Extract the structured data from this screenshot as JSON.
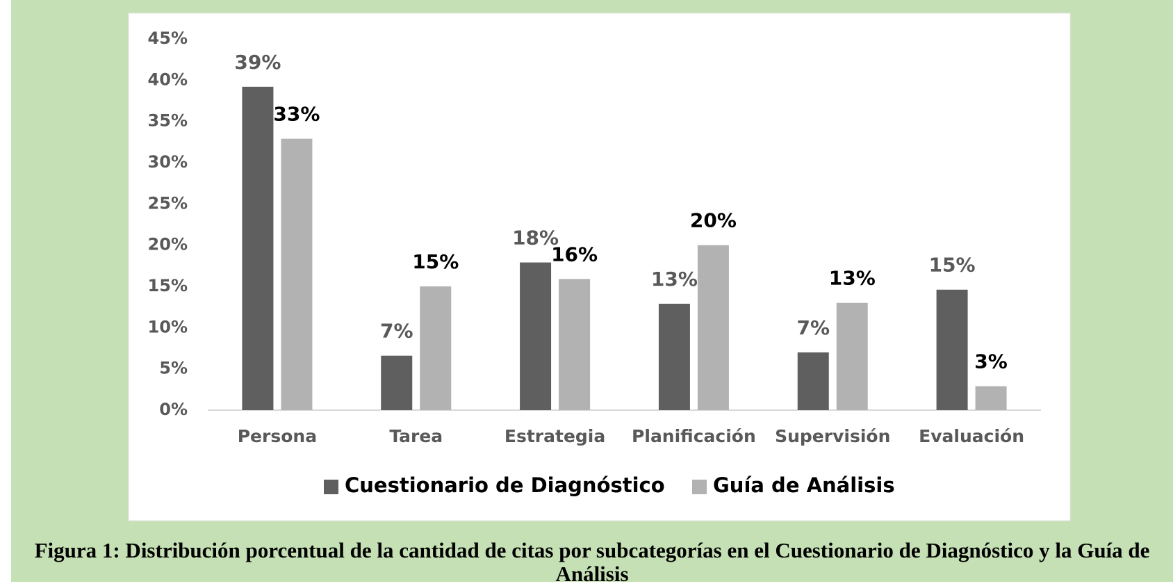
{
  "chart_data": {
    "type": "bar",
    "categories": [
      "Persona",
      "Tarea",
      "Estrategia",
      "Planificación",
      "Supervisión",
      "Evaluación"
    ],
    "series": [
      {
        "name": "Cuestionario de Diagnóstico",
        "color": "#5f5f5f",
        "values": [
          39.2,
          6.6,
          17.9,
          12.9,
          7.0,
          14.6
        ],
        "value_labels": [
          "39%",
          "7%",
          "18%",
          "13%",
          "7%",
          "15%"
        ]
      },
      {
        "name": "Guía de Análisis",
        "color": "#b2b2b2",
        "values": [
          32.9,
          15.0,
          15.9,
          20.0,
          13.0,
          2.9
        ],
        "value_labels": [
          "33%",
          "15%",
          "16%",
          "20%",
          "13%",
          "3%"
        ]
      }
    ],
    "ylim": [
      0,
      45
    ],
    "yticks": [
      {
        "value": 0,
        "label": "0%"
      },
      {
        "value": 5,
        "label": "5%"
      },
      {
        "value": 10,
        "label": "10%"
      },
      {
        "value": 15,
        "label": "15%"
      },
      {
        "value": 20,
        "label": "20%"
      },
      {
        "value": 25,
        "label": "25%"
      },
      {
        "value": 30,
        "label": "30%"
      },
      {
        "value": 35,
        "label": "35%"
      },
      {
        "value": 40,
        "label": "40%"
      },
      {
        "value": 45,
        "label": "45%"
      }
    ],
    "grid": false,
    "legend": "bottom",
    "caption": "Figura 1: Distribución porcentual de la cantidad de citas por subcategorías en el Cuestionario de Diagnóstico y la Guía de Análisis"
  }
}
